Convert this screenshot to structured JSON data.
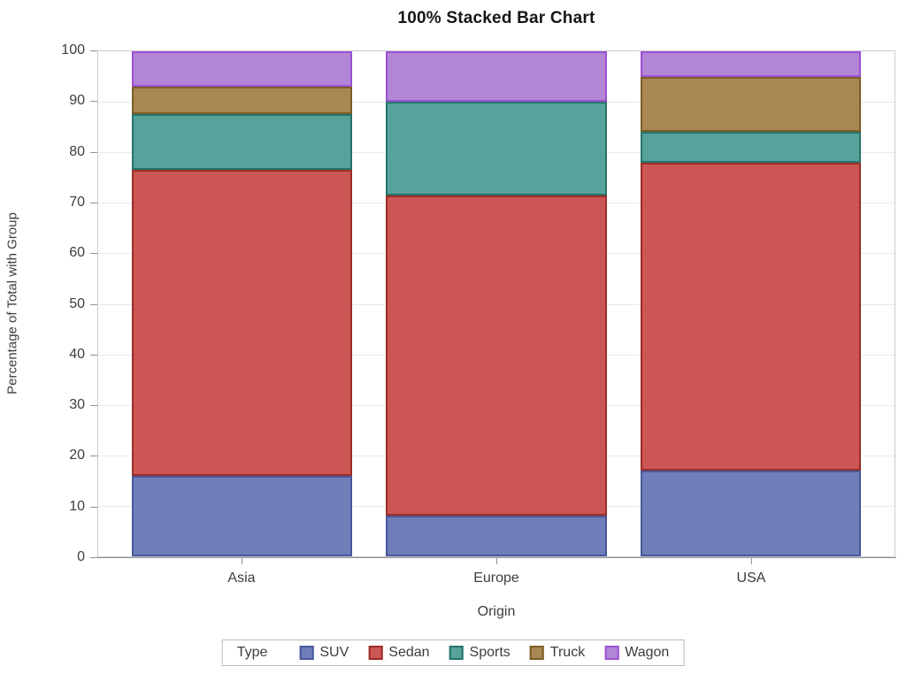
{
  "title": "100% Stacked Bar Chart",
  "chart_data": {
    "type": "bar",
    "variant": "100-percent-stacked",
    "title": "100% Stacked Bar Chart",
    "xlabel": "Origin",
    "ylabel": "Percentage of Total with Group",
    "categories": [
      "Asia",
      "Europe",
      "USA"
    ],
    "series": [
      {
        "name": "SUV",
        "values": [
          16,
          8,
          17
        ],
        "fill": "#6f7eb8",
        "stroke": "#49579d"
      },
      {
        "name": "Sedan",
        "values": [
          60.5,
          63.5,
          61
        ],
        "fill": "#cb5654",
        "stroke": "#9c2d27"
      },
      {
        "name": "Sports",
        "values": [
          11,
          18.5,
          6
        ],
        "fill": "#57a29a",
        "stroke": "#27736b"
      },
      {
        "name": "Truck",
        "values": [
          5.5,
          0,
          11
        ],
        "fill": "#a98752",
        "stroke": "#7b5d26"
      },
      {
        "name": "Wagon",
        "values": [
          7,
          10,
          5
        ],
        "fill": "#b286d5",
        "stroke": "#9c51d4"
      }
    ],
    "ylim": [
      0,
      100
    ],
    "yticks": [
      0,
      10,
      20,
      30,
      40,
      50,
      60,
      70,
      80,
      90,
      100
    ],
    "grid": true,
    "legend": {
      "title": "Type",
      "position": "bottom",
      "entries": [
        "SUV",
        "Sedan",
        "Sports",
        "Truck",
        "Wagon"
      ]
    }
  },
  "colors": {
    "gridline": "#e9e9eb",
    "frame": "#c9ccd0",
    "axis_line": "#8f9194",
    "text": "#3d3d3d",
    "title_text": "#161616"
  }
}
